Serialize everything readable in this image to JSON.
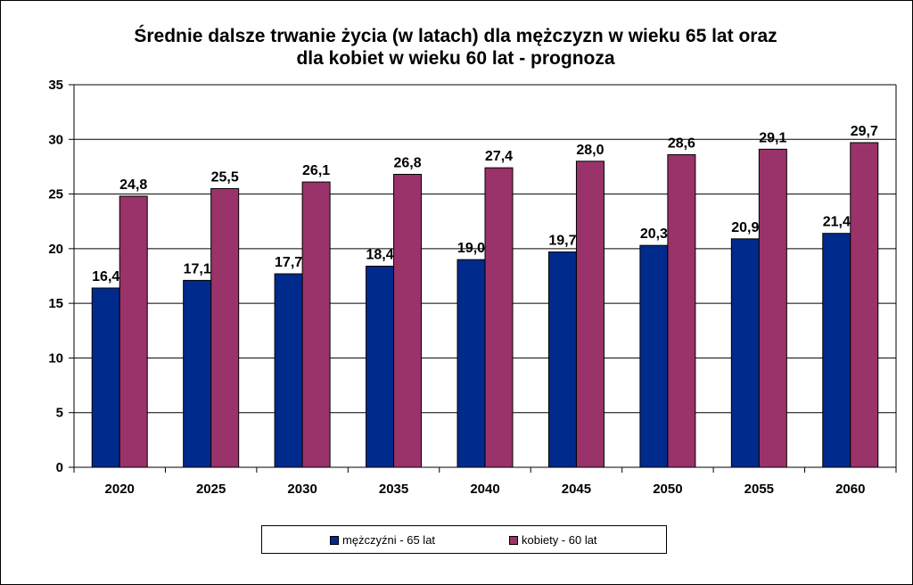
{
  "chart_data": {
    "type": "bar",
    "title": [
      "Średnie dalsze trwanie życia (w latach) dla mężczyzn w wieku 65 lat oraz",
      "dla kobiet w wieku 60 lat - prognoza"
    ],
    "categories": [
      "2020",
      "2025",
      "2030",
      "2035",
      "2040",
      "2045",
      "2050",
      "2055",
      "2060"
    ],
    "series": [
      {
        "name": "mężczyźni - 65 lat",
        "color": "#002A8C",
        "values": [
          16.4,
          17.1,
          17.7,
          18.4,
          19.0,
          19.7,
          20.3,
          20.9,
          21.4
        ],
        "labels": [
          "16,4",
          "17,1",
          "17,7",
          "18,4",
          "19,0",
          "19,7",
          "20,3",
          "20,9",
          "21,4"
        ]
      },
      {
        "name": "kobiety - 60 lat",
        "color": "#99336A",
        "values": [
          24.8,
          25.5,
          26.1,
          26.8,
          27.4,
          28.0,
          28.6,
          29.1,
          29.7
        ],
        "labels": [
          "24,8",
          "25,5",
          "26,1",
          "26,8",
          "27,4",
          "28,0",
          "28,6",
          "29,1",
          "29,7"
        ]
      }
    ],
    "ylim": [
      0,
      35
    ],
    "yticks": [
      "0",
      "5",
      "10",
      "15",
      "20",
      "25",
      "30",
      "35"
    ],
    "grid": true,
    "legend": "bottom"
  }
}
